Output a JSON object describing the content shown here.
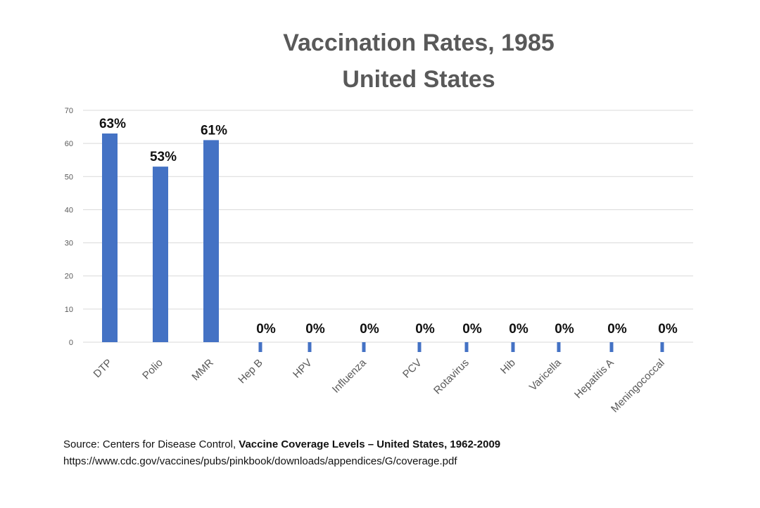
{
  "title_line1": "Vaccination Rates, 1985",
  "title_line2": "United States",
  "source": {
    "prefix": "Source: Centers for Disease Control, ",
    "bold": "Vaccine Coverage Levels – United States, 1962-2009",
    "url": "https://www.cdc.gov/vaccines/pubs/pinkbook/downloads/appendices/G/coverage.pdf"
  },
  "colors": {
    "bar": "#4472C4",
    "grid": "#D9D9D9",
    "axis_text": "#595959",
    "label_text": "#111111"
  },
  "chart_data": {
    "type": "bar",
    "title": "Vaccination Rates, 1985 United States",
    "categories": [
      "DTP",
      "Polio",
      "MMR",
      "Hep B",
      "HPV",
      "Influenza",
      "PCV",
      "Rotavirus",
      "Hib",
      "Varicella",
      "Hepatitis A",
      "Meningococcal"
    ],
    "values": [
      63,
      53,
      61,
      0,
      0,
      0,
      0,
      0,
      0,
      0,
      0,
      0
    ],
    "data_labels": [
      "63%",
      "53%",
      "61%",
      "0%",
      "0%",
      "0%",
      "0%",
      "0%",
      "0%",
      "0%",
      "0%",
      "0%"
    ],
    "yticks": [
      0,
      10,
      20,
      30,
      40,
      50,
      60,
      70
    ],
    "ylim": [
      0,
      70
    ],
    "xlabel": "",
    "ylabel": "",
    "grid": true,
    "legend": "none"
  }
}
